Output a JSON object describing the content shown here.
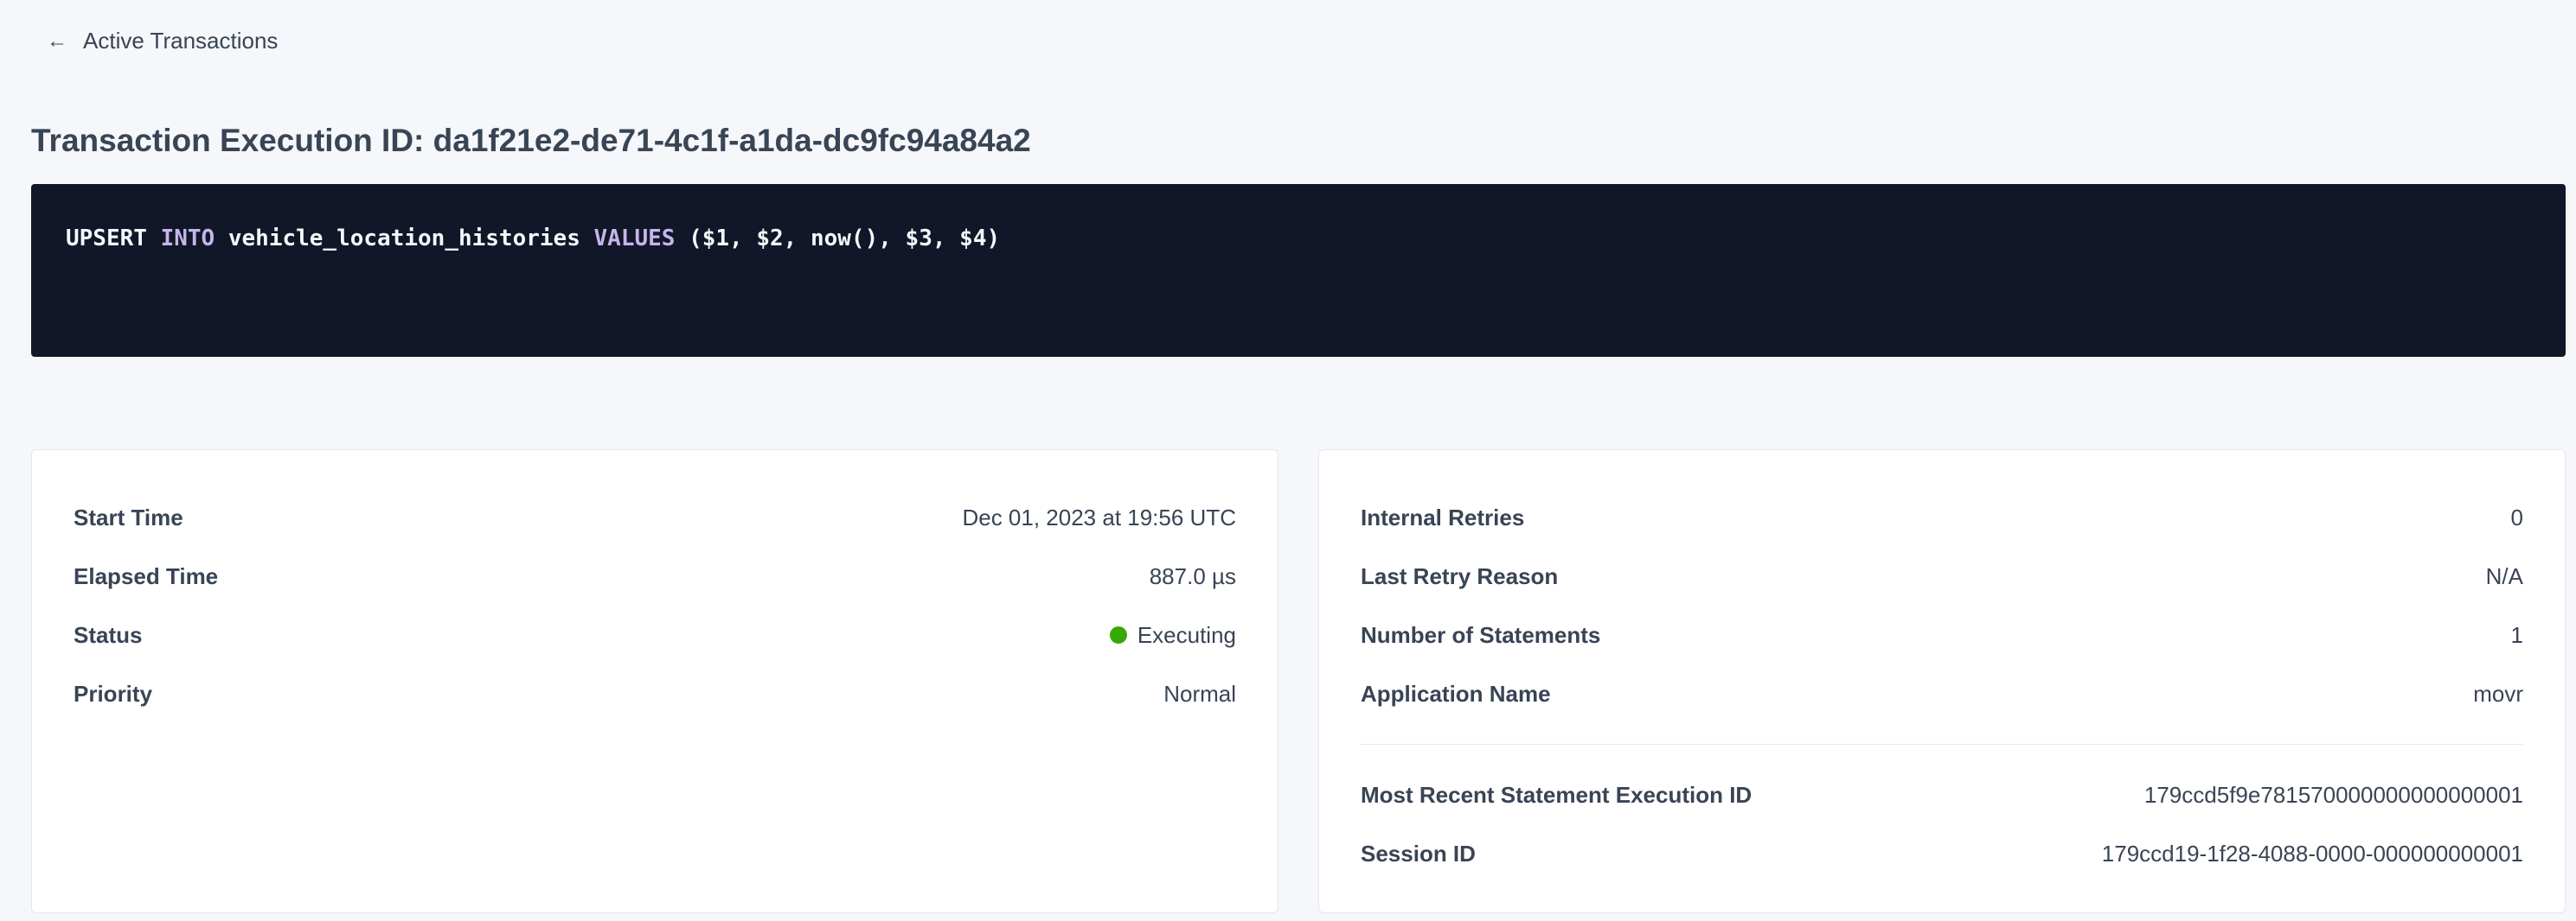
{
  "nav": {
    "back_label": "Active Transactions",
    "back_icon": "arrow-left-icon"
  },
  "header": {
    "title": "Transaction Execution ID: da1f21e2-de71-4c1f-a1da-dc9fc94a84a2"
  },
  "sql": {
    "tokens": [
      "UPSERT",
      "INTO",
      "vehicle_location_histories",
      "VALUES",
      "($1, $2, now(), $3, $4)"
    ]
  },
  "left_card": {
    "rows": [
      {
        "label": "Start Time",
        "value": "Dec 01, 2023 at 19:56 UTC"
      },
      {
        "label": "Elapsed Time",
        "value": "887.0 µs"
      },
      {
        "label": "Status",
        "value": "Executing",
        "status_color": "#37a806"
      },
      {
        "label": "Priority",
        "value": "Normal"
      }
    ]
  },
  "right_card": {
    "rows": [
      {
        "label": "Internal Retries",
        "value": "0"
      },
      {
        "label": "Last Retry Reason",
        "value": "N/A"
      },
      {
        "label": "Number of Statements",
        "value": "1"
      },
      {
        "label": "Application Name",
        "value": "movr"
      }
    ],
    "links": [
      {
        "label": "Most Recent Statement Execution ID",
        "value": "179ccd5f9e781570000000000000001"
      },
      {
        "label": "Session ID",
        "value": "179ccd19-1f28-4088-0000-000000000001"
      }
    ]
  },
  "colors": {
    "accent_link": "#0055ff",
    "code_bg": "#111628",
    "keyword": "#c5b5ea"
  }
}
